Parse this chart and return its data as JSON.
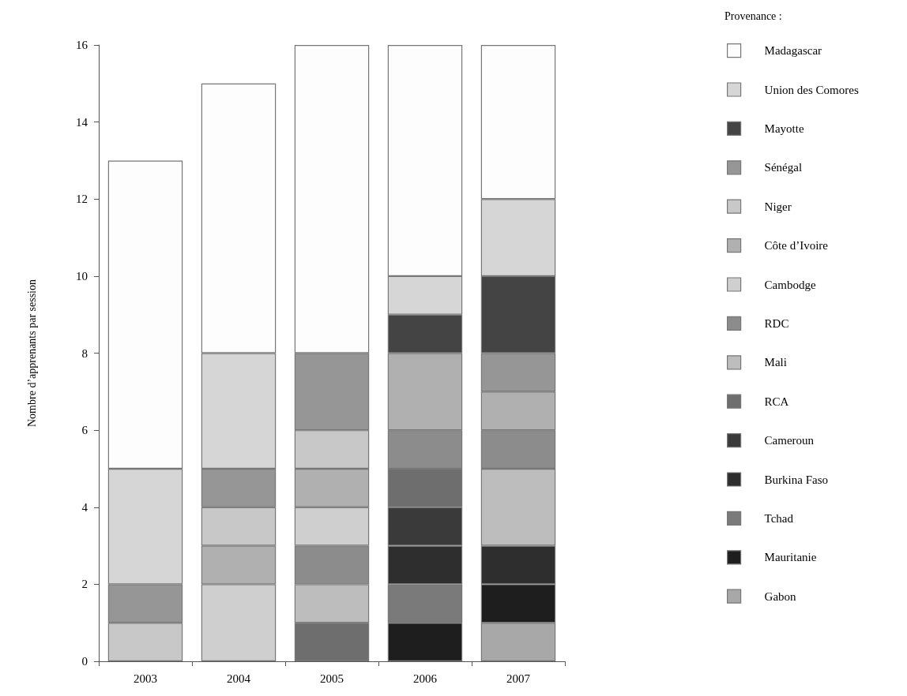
{
  "chart_data": {
    "type": "bar",
    "stacked": true,
    "ylabel": "Nombre d’apprenants par session",
    "legend_title": "Provenance :",
    "categories": [
      "2003",
      "2004",
      "2005",
      "2006",
      "2007"
    ],
    "ylim": [
      0,
      16
    ],
    "yticks": [
      0,
      2,
      4,
      6,
      8,
      10,
      12,
      14,
      16
    ],
    "grid": false,
    "legend": "right",
    "series": [
      {
        "name": "Gabon",
        "color": "#a8a8a8",
        "values": [
          null,
          null,
          null,
          null,
          1
        ]
      },
      {
        "name": "Mauritanie",
        "color": "#1e1e1e",
        "values": [
          null,
          null,
          null,
          1,
          1
        ]
      },
      {
        "name": "Tchad",
        "color": "#7a7a7a",
        "values": [
          null,
          null,
          null,
          1,
          null
        ]
      },
      {
        "name": "Burkina Faso",
        "color": "#2e2e2e",
        "values": [
          null,
          null,
          null,
          1,
          1
        ]
      },
      {
        "name": "Cameroun",
        "color": "#3a3a3a",
        "values": [
          null,
          null,
          null,
          1,
          null
        ]
      },
      {
        "name": "RCA",
        "color": "#6e6e6e",
        "values": [
          null,
          null,
          1,
          1,
          null
        ]
      },
      {
        "name": "Mali",
        "color": "#bdbdbd",
        "values": [
          null,
          null,
          1,
          null,
          2
        ]
      },
      {
        "name": "RDC",
        "color": "#8c8c8c",
        "values": [
          null,
          null,
          1,
          1,
          1
        ]
      },
      {
        "name": "Cambodge",
        "color": "#cfcfcf",
        "values": [
          null,
          2,
          1,
          null,
          null
        ]
      },
      {
        "name": "Côte d’Ivoire",
        "color": "#b0b0b0",
        "values": [
          null,
          1,
          1,
          2,
          1
        ]
      },
      {
        "name": "Niger",
        "color": "#c8c8c8",
        "values": [
          1,
          1,
          1,
          null,
          null
        ]
      },
      {
        "name": "Sénégal",
        "color": "#969696",
        "values": [
          1,
          1,
          2,
          null,
          1
        ]
      },
      {
        "name": "Mayotte",
        "color": "#444444",
        "values": [
          null,
          null,
          null,
          1,
          2
        ]
      },
      {
        "name": "Union des Comores",
        "color": "#d6d6d6",
        "values": [
          3,
          3,
          null,
          1,
          2
        ]
      },
      {
        "name": "Madagascar",
        "color": "#fdfdfd",
        "values": [
          8,
          7,
          8,
          6,
          4
        ]
      }
    ]
  }
}
